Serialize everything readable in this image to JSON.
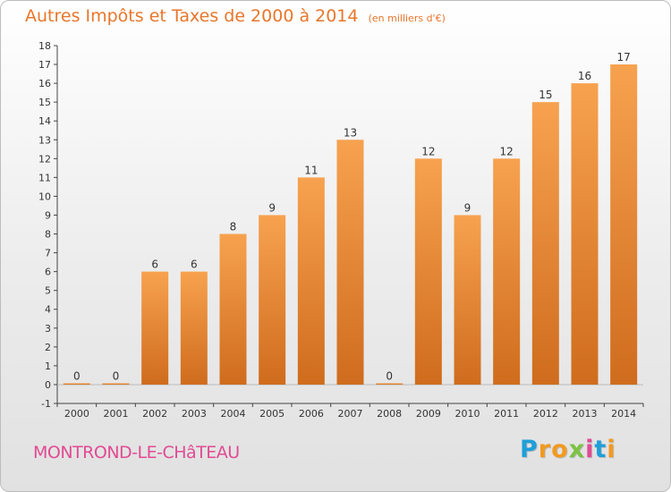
{
  "chart_data": {
    "type": "bar",
    "title": "Autres Impôts et Taxes de 2000 à 2014",
    "subtitle": "(en milliers d'€)",
    "categories": [
      "2000",
      "2001",
      "2002",
      "2003",
      "2004",
      "2005",
      "2006",
      "2007",
      "2008",
      "2009",
      "2010",
      "2011",
      "2012",
      "2013",
      "2014"
    ],
    "values": [
      0,
      0,
      6,
      6,
      8,
      9,
      11,
      13,
      0,
      12,
      9,
      12,
      15,
      16,
      17
    ],
    "ylim": [
      -1,
      18
    ],
    "yticks": [
      -1,
      0,
      1,
      2,
      3,
      4,
      5,
      6,
      7,
      8,
      9,
      10,
      11,
      12,
      13,
      14,
      15,
      16,
      17,
      18
    ],
    "grid": false,
    "bar_color": "#f0923c"
  },
  "footer": {
    "town": "MONTROND-LE-CHâTEAU",
    "logo": {
      "letters": [
        "P",
        "r",
        "o",
        "x",
        "i",
        "t",
        "i"
      ],
      "colors": [
        "#1f9fd9",
        "#f29a1f",
        "#f29a1f",
        "#7cc242",
        "#e24a93",
        "#1f9fd9",
        "#f29a1f"
      ]
    }
  }
}
